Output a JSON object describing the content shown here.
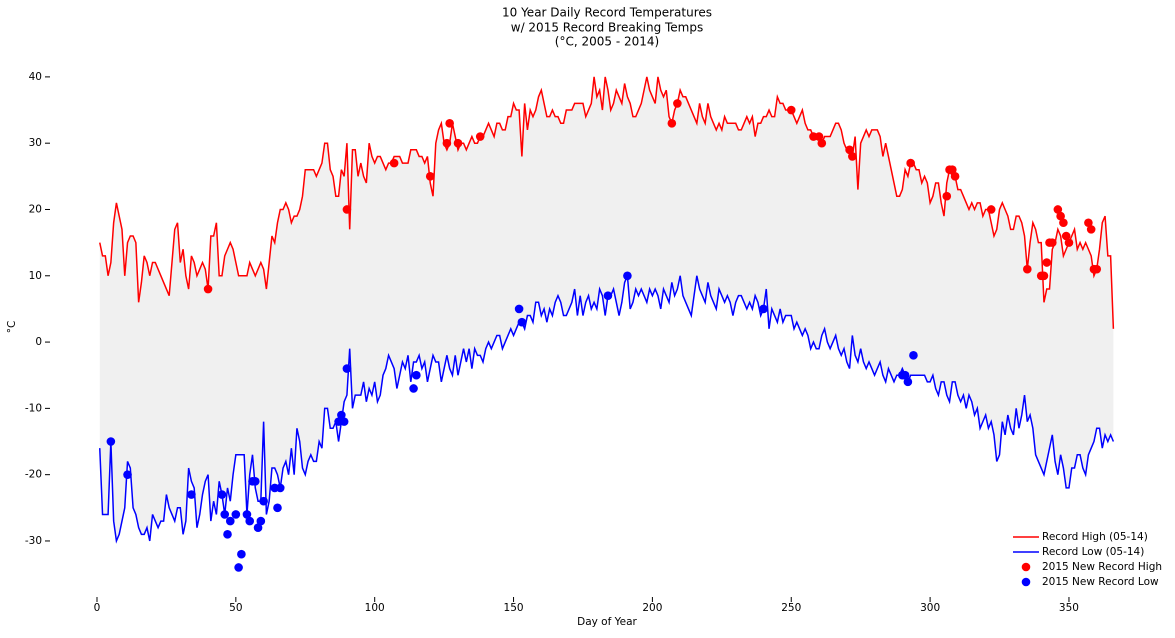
{
  "chart_data": {
    "type": "line",
    "title": [
      "10 Year Daily Record Temperatures",
      "w/ 2015 Record Breaking Temps",
      "(°C, 2005 - 2014)"
    ],
    "x_label": "Day of Year",
    "y_label": "°C",
    "xlim": [
      -5,
      370
    ],
    "ylim": [
      -38,
      43
    ],
    "xticks": [
      0,
      50,
      100,
      150,
      200,
      250,
      300,
      350
    ],
    "yticks": [
      -30,
      -20,
      -10,
      0,
      10,
      20,
      30,
      40
    ],
    "legend": "lower right",
    "fill_between": true,
    "fill_color": "#f0f0f0",
    "x": [
      1,
      2,
      3,
      4,
      5,
      6,
      7,
      8,
      9,
      10,
      11,
      12,
      13,
      14,
      15,
      16,
      17,
      18,
      19,
      20,
      21,
      22,
      23,
      24,
      25,
      26,
      27,
      28,
      29,
      30,
      31,
      32,
      33,
      34,
      35,
      36,
      37,
      38,
      39,
      40,
      41,
      42,
      43,
      44,
      45,
      46,
      47,
      48,
      49,
      50,
      51,
      52,
      53,
      54,
      55,
      56,
      57,
      58,
      59,
      60,
      61,
      62,
      63,
      64,
      65,
      66,
      67,
      68,
      69,
      70,
      71,
      72,
      73,
      74,
      75,
      76,
      77,
      78,
      79,
      80,
      81,
      82,
      83,
      84,
      85,
      86,
      87,
      88,
      89,
      90,
      91,
      92,
      93,
      94,
      95,
      96,
      97,
      98,
      99,
      100,
      101,
      102,
      103,
      104,
      105,
      106,
      107,
      108,
      109,
      110,
      111,
      112,
      113,
      114,
      115,
      116,
      117,
      118,
      119,
      120,
      121,
      122,
      123,
      124,
      125,
      126,
      127,
      128,
      129,
      130,
      131,
      132,
      133,
      134,
      135,
      136,
      137,
      138,
      139,
      140,
      141,
      142,
      143,
      144,
      145,
      146,
      147,
      148,
      149,
      150,
      151,
      152,
      153,
      154,
      155,
      156,
      157,
      158,
      159,
      160,
      161,
      162,
      163,
      164,
      165,
      166,
      167,
      168,
      169,
      170,
      171,
      172,
      173,
      174,
      175,
      176,
      177,
      178,
      179,
      180,
      181,
      182,
      183,
      184,
      185,
      186,
      187,
      188,
      189,
      190,
      191,
      192,
      193,
      194,
      195,
      196,
      197,
      198,
      199,
      200,
      201,
      202,
      203,
      204,
      205,
      206,
      207,
      208,
      209,
      210,
      211,
      212,
      213,
      214,
      215,
      216,
      217,
      218,
      219,
      220,
      221,
      222,
      223,
      224,
      225,
      226,
      227,
      228,
      229,
      230,
      231,
      232,
      233,
      234,
      235,
      236,
      237,
      238,
      239,
      240,
      241,
      242,
      243,
      244,
      245,
      246,
      247,
      248,
      249,
      250,
      251,
      252,
      253,
      254,
      255,
      256,
      257,
      258,
      259,
      260,
      261,
      262,
      263,
      264,
      265,
      266,
      267,
      268,
      269,
      270,
      271,
      272,
      273,
      274,
      275,
      276,
      277,
      278,
      279,
      280,
      281,
      282,
      283,
      284,
      285,
      286,
      287,
      288,
      289,
      290,
      291,
      292,
      293,
      294,
      295,
      296,
      297,
      298,
      299,
      300,
      301,
      302,
      303,
      304,
      305,
      306,
      307,
      308,
      309,
      310,
      311,
      312,
      313,
      314,
      315,
      316,
      317,
      318,
      319,
      320,
      321,
      322,
      323,
      324,
      325,
      326,
      327,
      328,
      329,
      330,
      331,
      332,
      333,
      334,
      335,
      336,
      337,
      338,
      339,
      340,
      341,
      342,
      343,
      344,
      345,
      346,
      347,
      348,
      349,
      350,
      351,
      352,
      353,
      354,
      355,
      356,
      357,
      358,
      359,
      360,
      361,
      362,
      363,
      364,
      365,
      366
    ],
    "series": [
      {
        "name": "Record High (05-14)",
        "type": "line",
        "color": "#ff0000",
        "values": [
          15,
          13,
          13,
          10,
          12,
          18,
          21,
          19,
          17,
          10,
          15,
          16,
          16,
          15,
          6,
          9,
          13,
          12,
          10,
          12,
          12,
          11,
          10,
          9,
          8,
          7,
          12,
          17,
          18,
          12,
          14,
          10,
          8,
          13,
          12,
          10,
          11,
          12,
          11,
          8,
          16,
          16,
          18,
          10,
          10,
          13,
          14,
          15,
          14,
          12,
          10,
          10,
          10,
          10,
          12,
          11,
          10,
          11,
          12,
          11,
          8,
          12,
          16,
          15,
          18,
          20,
          20,
          21,
          20,
          18,
          19,
          19,
          20,
          22,
          26,
          26,
          26,
          26,
          25,
          26,
          27,
          30,
          30,
          26,
          25,
          22,
          22,
          26,
          25,
          30,
          17,
          29,
          29,
          25,
          27,
          25,
          24,
          30,
          28,
          27,
          28,
          28,
          27,
          26,
          27,
          27,
          28,
          28,
          28,
          27,
          27,
          27,
          29,
          29,
          29,
          28,
          28,
          27,
          28,
          24,
          22,
          30,
          32,
          33,
          30,
          29,
          30,
          33,
          31,
          29,
          30,
          30,
          29,
          30,
          31,
          30,
          30,
          31,
          31,
          32,
          33,
          32,
          31,
          33,
          33,
          32,
          32,
          34,
          34,
          36,
          35,
          35,
          28,
          36,
          32,
          35,
          34,
          35,
          37,
          38,
          36,
          34,
          34,
          35,
          34,
          34,
          33,
          33,
          35,
          35,
          35,
          36,
          36,
          36,
          36,
          34,
          35,
          36,
          40,
          37,
          38,
          35,
          40,
          38,
          35,
          36,
          38,
          37,
          36,
          39,
          37,
          36,
          34,
          34,
          35,
          36,
          38,
          40,
          38,
          37,
          36,
          40,
          38,
          37,
          38,
          34,
          33,
          35,
          36,
          38,
          37,
          37,
          36,
          35,
          34,
          33,
          36,
          34,
          33,
          36,
          34,
          33,
          32,
          33,
          32,
          34,
          33,
          33,
          33,
          33,
          32,
          32,
          33,
          34,
          33,
          34,
          31,
          33,
          33,
          34,
          34,
          35,
          34,
          34,
          37,
          36,
          36,
          35,
          35,
          35,
          34,
          33,
          34,
          35,
          33,
          32,
          32,
          31,
          31,
          31,
          30,
          31,
          31,
          31,
          32,
          33,
          33,
          32,
          30,
          29,
          29,
          28,
          31,
          23,
          30,
          31,
          32,
          31,
          32,
          32,
          32,
          31,
          28,
          30,
          28,
          26,
          24,
          22,
          22,
          23,
          26,
          25,
          27,
          27,
          26,
          26,
          24,
          25,
          24,
          21,
          22,
          24,
          24,
          21,
          19,
          24,
          26,
          25,
          25,
          23,
          23,
          22,
          21,
          20,
          21,
          20,
          21,
          21,
          19,
          20,
          20,
          18,
          16,
          17,
          20,
          21,
          20,
          19,
          17,
          17,
          19,
          19,
          18,
          16,
          11,
          15,
          18,
          17,
          15,
          15,
          6,
          8,
          8,
          14,
          15,
          17,
          16,
          13,
          14,
          15,
          16,
          17,
          14,
          15,
          14,
          15,
          14,
          13,
          10,
          11,
          14,
          18,
          19,
          13,
          13,
          2
        ]
      },
      {
        "name": "Record Low (05-14)",
        "type": "line",
        "color": "#0000ff",
        "values": [
          -16,
          -26,
          -26,
          -26,
          -15,
          -27,
          -30,
          -29,
          -27,
          -25,
          -18,
          -19,
          -25,
          -26,
          -28,
          -29,
          -29,
          -28,
          -30,
          -26,
          -27,
          -28,
          -27,
          -27,
          -23,
          -25,
          -26,
          -27,
          -25,
          -25,
          -29,
          -27,
          -19,
          -21,
          -22,
          -28,
          -26,
          -23,
          -21,
          -20,
          -27,
          -24,
          -26,
          -21,
          -23,
          -26,
          -22,
          -24,
          -20,
          -17,
          -17,
          -17,
          -17,
          -26,
          -20,
          -17,
          -22,
          -24,
          -24,
          -12,
          -26,
          -24,
          -19,
          -19,
          -20,
          -22,
          -19,
          -18,
          -20,
          -16,
          -20,
          -13,
          -15,
          -19,
          -20,
          -18,
          -17,
          -18,
          -18,
          -15,
          -16,
          -10,
          -10,
          -13,
          -13,
          -12,
          -15,
          -12,
          -9,
          -8,
          -1,
          -10,
          -8,
          -8,
          -8,
          -6,
          -9,
          -7,
          -8,
          -6,
          -9,
          -8,
          -5,
          -4,
          -2,
          -3,
          -4,
          -7,
          -5,
          -3,
          -4,
          -2,
          -6,
          -3,
          -3,
          -2,
          -4,
          -3,
          -6,
          -4,
          -2,
          -3,
          -3,
          -6,
          -4,
          -2,
          -4,
          -5,
          -2,
          -5,
          -3,
          -1,
          -3,
          -1,
          -4,
          -1,
          -2,
          -2,
          -3,
          -1,
          0,
          -1,
          0,
          1,
          1,
          -1,
          0,
          1,
          2,
          1,
          2,
          3,
          3,
          2,
          4,
          4,
          3,
          6,
          6,
          4,
          5,
          3,
          5,
          4,
          6,
          7,
          6,
          4,
          4,
          5,
          6,
          8,
          4,
          7,
          4,
          6,
          7,
          5,
          6,
          5,
          8,
          7,
          4,
          7,
          7,
          8,
          6,
          4,
          6,
          9,
          10,
          5,
          6,
          8,
          7,
          8,
          7,
          6,
          8,
          7,
          8,
          7,
          5,
          8,
          7,
          6,
          9,
          7,
          8,
          10,
          7,
          6,
          5,
          4,
          7,
          10,
          8,
          7,
          6,
          9,
          7,
          6,
          5,
          8,
          7,
          6,
          7,
          6,
          4,
          6,
          7,
          7,
          6,
          5,
          6,
          5,
          7,
          6,
          4,
          5,
          8,
          2,
          5,
          4,
          3,
          5,
          3,
          4,
          4,
          4,
          2,
          3,
          2,
          1,
          2,
          1,
          -1,
          0,
          -1,
          -1,
          1,
          2,
          0,
          -1,
          0,
          1,
          -1,
          -2,
          -1,
          -3,
          -4,
          1,
          -2,
          -3,
          -1,
          -3,
          -4,
          -3,
          -4,
          -5,
          -4,
          -3,
          -5,
          -6,
          -4,
          -5,
          -6,
          -5,
          -5,
          -4,
          -5,
          -6,
          -5,
          -5,
          -5,
          -5,
          -5,
          -5,
          -6,
          -6,
          -5,
          -7,
          -8,
          -6,
          -6,
          -8,
          -9,
          -6,
          -6,
          -8,
          -9,
          -8,
          -10,
          -8,
          -9,
          -11,
          -10,
          -13,
          -12,
          -11,
          -13,
          -12,
          -14,
          -18,
          -17,
          -12,
          -14,
          -11,
          -13,
          -14,
          -10,
          -13,
          -11,
          -8,
          -12,
          -11,
          -13,
          -17,
          -18,
          -19,
          -20,
          -18,
          -16,
          -14,
          -18,
          -20,
          -17,
          -19,
          -22,
          -22,
          -19,
          -19,
          -17,
          -17,
          -19,
          -20,
          -17,
          -16,
          -15,
          -13,
          -13,
          -16,
          -14,
          -15,
          -14,
          -15
        ]
      },
      {
        "name": "2015 New Record High",
        "type": "scatter",
        "color": "#ff0000",
        "x": [
          40,
          90,
          107,
          120,
          126,
          127,
          130,
          138,
          207,
          209,
          250,
          258,
          260,
          261,
          271,
          272,
          293,
          306,
          307,
          308,
          309,
          322,
          335,
          340,
          341,
          342,
          343,
          344,
          346,
          347,
          348,
          349,
          350,
          357,
          358,
          359,
          360
        ],
        "values": [
          8,
          20,
          27,
          25,
          30,
          33,
          30,
          31,
          33,
          36,
          35,
          31,
          31,
          30,
          29,
          28,
          27,
          22,
          26,
          26,
          25,
          20,
          11,
          10,
          10,
          12,
          15,
          15,
          20,
          19,
          18,
          16,
          15,
          18,
          17,
          11,
          11
        ]
      },
      {
        "name": "2015 New Record Low",
        "type": "scatter",
        "color": "#0000ff",
        "x": [
          5,
          11,
          34,
          45,
          46,
          47,
          48,
          50,
          51,
          52,
          54,
          55,
          56,
          57,
          58,
          59,
          60,
          64,
          65,
          66,
          87,
          88,
          89,
          90,
          114,
          115,
          152,
          153,
          184,
          191,
          240,
          290,
          291,
          292,
          294
        ],
        "values": [
          -15,
          -20,
          -23,
          -23,
          -26,
          -29,
          -27,
          -26,
          -34,
          -32,
          -26,
          -27,
          -21,
          -21,
          -28,
          -27,
          -24,
          -22,
          -25,
          -22,
          -12,
          -11,
          -12,
          -4,
          -7,
          -5,
          5,
          3,
          7,
          10,
          5,
          -5,
          -5,
          -6,
          -2
        ]
      }
    ]
  }
}
